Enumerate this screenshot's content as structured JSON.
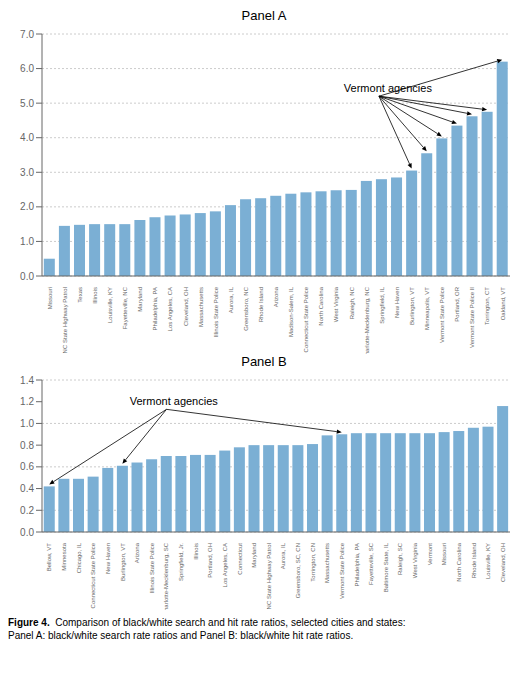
{
  "chart_data": [
    {
      "type": "bar",
      "title": "Panel A",
      "categories": [
        "Missouri",
        "NC State Highway Patrol",
        "Texas",
        "Illinois",
        "Louisville, KY",
        "Fayetteville, NC",
        "Maryland",
        "Philadelphia, PA",
        "Los Angeles, CA",
        "Cleveland, OH",
        "Massachusetts",
        "Illinois State Police",
        "Aurora, IL",
        "Greensboro, NC",
        "Rhode Island",
        "Arizona",
        "Madison-Salem, IL",
        "Connecticut State Police",
        "North Carolina",
        "West Virginia",
        "Raleigh, NC",
        "Charlotte-Mecklenburg, NC",
        "Springfield, IL",
        "New Haven",
        "Burlington, VT",
        "Minneapolis, VT",
        "Vermont State Police",
        "Portland, OR",
        "Vermont State Police II",
        "Torrington, CT",
        "Oakland, VT"
      ],
      "values": [
        0.5,
        1.45,
        1.48,
        1.5,
        1.5,
        1.5,
        1.62,
        1.7,
        1.75,
        1.78,
        1.82,
        1.87,
        2.05,
        2.22,
        2.25,
        2.32,
        2.38,
        2.42,
        2.45,
        2.48,
        2.49,
        2.75,
        2.8,
        2.85,
        3.05,
        3.55,
        3.98,
        4.35,
        4.62,
        4.75,
        6.2
      ],
      "color": "#7bafd4",
      "ylim": [
        0,
        7.0
      ],
      "yticks": [
        {
          "value": 0,
          "label": "0.0"
        },
        {
          "value": 1,
          "label": "1.0"
        },
        {
          "value": 2,
          "label": "2.0"
        },
        {
          "value": 3,
          "label": "3.0"
        },
        {
          "value": 4,
          "label": "4.0"
        },
        {
          "value": 5,
          "label": "5.0"
        },
        {
          "value": 6,
          "label": "6.0"
        },
        {
          "value": 7,
          "label": "7.0"
        }
      ],
      "grid": true,
      "annotations": [
        {
          "text": "Vermont agencies",
          "targets": [
            "Burlington, VT",
            "Minneapolis, VT",
            "Vermont State Police",
            "Portland, OR",
            "Vermont State Police II",
            "Torrington, CT",
            "Oakland, VT"
          ]
        }
      ]
    },
    {
      "type": "bar",
      "title": "Panel B",
      "categories": [
        "Bellow, VT",
        "Minnesota",
        "Chicago, IL",
        "Connecticut State Police",
        "New Haven",
        "Burlington, VT",
        "Arizona",
        "Illinois State Police",
        "Charlotte-Mecklenburg, SC",
        "Springfield, Jr.",
        "Illinois",
        "Portland, OH",
        "Los Angeles, CA",
        "Connecticut",
        "Maryland",
        "NC State Highway Patrol",
        "Aurora, IL",
        "Greensboro, SC, CN",
        "Torrington, CN",
        "Massachusetts",
        "Vermont State Police",
        "Philadelphia, PA",
        "Fayetteville, SC",
        "Baltimore State, IL",
        "Raleigh, SC",
        "West Virginia",
        "Vermont",
        "Missouri",
        "North Carolina",
        "Rhode Island",
        "Louisville, KY",
        "Cleveland, OH"
      ],
      "values": [
        0.42,
        0.49,
        0.49,
        0.51,
        0.59,
        0.61,
        0.64,
        0.67,
        0.7,
        0.7,
        0.71,
        0.71,
        0.75,
        0.78,
        0.8,
        0.8,
        0.8,
        0.8,
        0.81,
        0.89,
        0.9,
        0.91,
        0.91,
        0.91,
        0.91,
        0.91,
        0.91,
        0.92,
        0.93,
        0.96,
        0.97,
        1.16
      ],
      "color": "#7bafd4",
      "ylim": [
        0,
        1.4
      ],
      "yticks": [
        {
          "value": 0,
          "label": "0.0"
        },
        0.2,
        0.4,
        0.6,
        0.8,
        {
          "value": 1,
          "label": "1.0"
        },
        1.2,
        1.4
      ],
      "grid": true,
      "annotations": [
        {
          "text": "Vermont agencies",
          "targets": [
            "Bellow, VT",
            "Burlington, VT",
            "Vermont State Police"
          ]
        }
      ]
    }
  ],
  "caption": {
    "bold": "Figure 4.",
    "text": "  Comparison of black/white search and hit rate ratios, selected cities and states:\nPanel A: black/white search rate ratios and Panel B: black/white hit rate ratios."
  }
}
